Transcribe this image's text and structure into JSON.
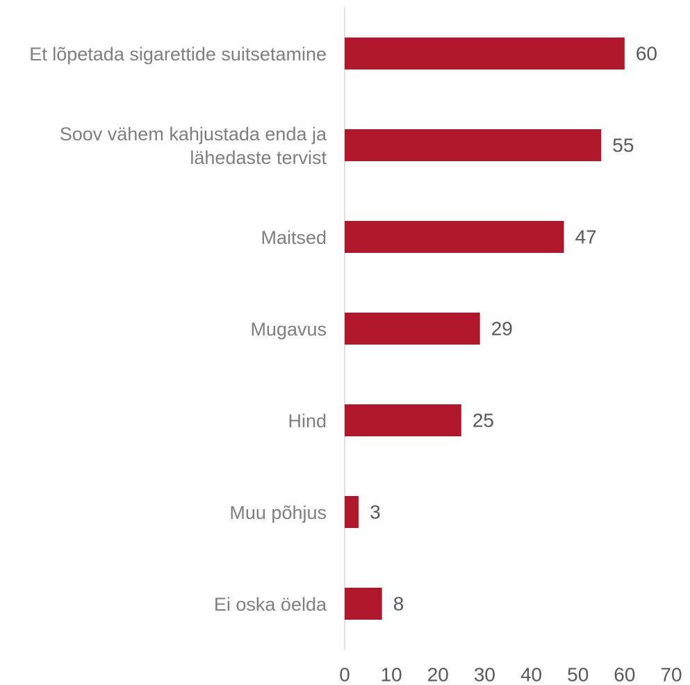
{
  "chart_data": {
    "type": "barh",
    "categories": [
      "Et lõpetada sigarettide suitsetamine",
      "Soov vähem kahjustada enda ja lähedaste tervist",
      "Maitsed",
      "Mugavus",
      "Hind",
      "Muu põhjus",
      "Ei oska öelda"
    ],
    "values": [
      60,
      55,
      47,
      29,
      25,
      3,
      8
    ],
    "color": "#b0172b",
    "xlim": [
      0,
      70
    ],
    "xticks": [
      0,
      10,
      20,
      30,
      40,
      50,
      60,
      70
    ],
    "grid": false
  }
}
